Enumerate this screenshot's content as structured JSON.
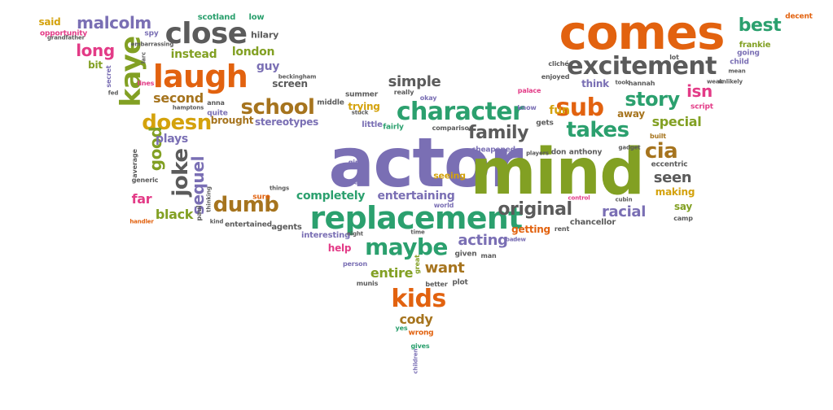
{
  "colors": {
    "orange": "#e2620f",
    "green": "#2ba06e",
    "purple": "#7a6fb4",
    "olive": "#82a023",
    "gray": "#5b5b5b",
    "gold": "#d4a20c",
    "brown": "#a6741e",
    "magenta": "#e33b87"
  },
  "words": [
    {
      "text": "actor",
      "color": "purple"
    },
    {
      "text": "mind",
      "color": "olive"
    },
    {
      "text": "comes",
      "color": "orange"
    },
    {
      "text": "replacement",
      "color": "green"
    },
    {
      "text": "excitement",
      "color": "gray"
    },
    {
      "text": "close",
      "color": "gray"
    },
    {
      "text": "laugh",
      "color": "orange"
    },
    {
      "text": "character",
      "color": "green"
    },
    {
      "text": "school",
      "color": "brown"
    },
    {
      "text": "doesn",
      "color": "gold"
    },
    {
      "text": "maybe",
      "color": "green"
    },
    {
      "text": "kids",
      "color": "orange"
    },
    {
      "text": "sub",
      "color": "orange"
    },
    {
      "text": "story",
      "color": "green"
    },
    {
      "text": "takes",
      "color": "green"
    },
    {
      "text": "dumb",
      "color": "brown"
    },
    {
      "text": "family",
      "color": "gray"
    },
    {
      "text": "original",
      "color": "gray"
    },
    {
      "text": "cia",
      "color": "brown"
    },
    {
      "text": "kaye",
      "color": "olive"
    },
    {
      "text": "joke",
      "color": "gray"
    },
    {
      "text": "malcolm",
      "color": "purple"
    },
    {
      "text": "acting",
      "color": "purple"
    },
    {
      "text": "racial",
      "color": "purple"
    },
    {
      "text": "want",
      "color": "brown"
    },
    {
      "text": "entire",
      "color": "olive"
    },
    {
      "text": "cody",
      "color": "brown"
    },
    {
      "text": "simple",
      "color": "gray"
    },
    {
      "text": "best",
      "color": "green"
    },
    {
      "text": "second",
      "color": "brown"
    },
    {
      "text": "long",
      "color": "magenta"
    },
    {
      "text": "isn",
      "color": "magenta"
    },
    {
      "text": "sequel",
      "color": "purple"
    },
    {
      "text": "black",
      "color": "olive"
    },
    {
      "text": "special",
      "color": "olive"
    },
    {
      "text": "seen",
      "color": "gray"
    },
    {
      "text": "making",
      "color": "gold"
    },
    {
      "text": "entertaining",
      "color": "purple"
    },
    {
      "text": "completely",
      "color": "green"
    },
    {
      "text": "good",
      "color": "olive"
    },
    {
      "text": "instead",
      "color": "olive"
    },
    {
      "text": "london",
      "color": "olive"
    },
    {
      "text": "brought",
      "color": "brown"
    },
    {
      "text": "stereotypes",
      "color": "purple"
    },
    {
      "text": "far",
      "color": "magenta"
    },
    {
      "text": "plays",
      "color": "purple"
    },
    {
      "text": "getting",
      "color": "orange"
    },
    {
      "text": "away",
      "color": "brown"
    },
    {
      "text": "fun",
      "color": "gold"
    },
    {
      "text": "think",
      "color": "purple"
    },
    {
      "text": "guy",
      "color": "purple"
    },
    {
      "text": "hilary",
      "color": "gray"
    },
    {
      "text": "said",
      "color": "gold"
    },
    {
      "text": "bit",
      "color": "olive"
    },
    {
      "text": "say",
      "color": "olive"
    },
    {
      "text": "trying",
      "color": "gold"
    },
    {
      "text": "seeing",
      "color": "gold"
    },
    {
      "text": "help",
      "color": "magenta"
    },
    {
      "text": "chancellor",
      "color": "gray"
    },
    {
      "text": "screen",
      "color": "gray"
    },
    {
      "text": "scotland",
      "color": "green"
    },
    {
      "text": "low",
      "color": "green"
    },
    {
      "text": "frankie",
      "color": "olive"
    },
    {
      "text": "decent",
      "color": "orange"
    },
    {
      "text": "opportunity",
      "color": "magenta"
    },
    {
      "text": "spy",
      "color": "purple"
    },
    {
      "text": "little",
      "color": "purple"
    },
    {
      "text": "tell",
      "color": "purple"
    },
    {
      "text": "interesting",
      "color": "purple"
    },
    {
      "text": "agents",
      "color": "gray"
    },
    {
      "text": "entertained",
      "color": "gray"
    },
    {
      "text": "sure",
      "color": "orange"
    },
    {
      "text": "gets",
      "color": "gray"
    },
    {
      "text": "don",
      "color": "gray"
    },
    {
      "text": "anthony",
      "color": "gray"
    },
    {
      "text": "eccentric",
      "color": "gray"
    },
    {
      "text": "cheapened",
      "color": "purple"
    },
    {
      "text": "plot",
      "color": "gray"
    },
    {
      "text": "given",
      "color": "gray"
    },
    {
      "text": "man",
      "color": "gray"
    },
    {
      "text": "wrong",
      "color": "orange"
    },
    {
      "text": "gives",
      "color": "green"
    },
    {
      "text": "camp",
      "color": "gray"
    },
    {
      "text": "rent",
      "color": "gray"
    },
    {
      "text": "summer",
      "color": "gray"
    },
    {
      "text": "enjoyed",
      "color": "gray"
    },
    {
      "text": "palace",
      "color": "magenta"
    },
    {
      "text": "hannah",
      "color": "gray"
    },
    {
      "text": "lot",
      "color": "gray"
    },
    {
      "text": "child",
      "color": "purple"
    },
    {
      "text": "going",
      "color": "purple"
    },
    {
      "text": "built",
      "color": "brown"
    },
    {
      "text": "script",
      "color": "magenta"
    },
    {
      "text": "okay",
      "color": "purple"
    },
    {
      "text": "really",
      "color": "gray"
    },
    {
      "text": "know",
      "color": "purple"
    },
    {
      "text": "quite",
      "color": "purple"
    },
    {
      "text": "anna",
      "color": "gray"
    },
    {
      "text": "fairly",
      "color": "green"
    },
    {
      "text": "middle",
      "color": "gray"
    },
    {
      "text": "generic",
      "color": "gray"
    },
    {
      "text": "average",
      "color": "gray"
    },
    {
      "text": "secret",
      "color": "purple"
    },
    {
      "text": "lines",
      "color": "magenta"
    },
    {
      "text": "girl",
      "color": "purple"
    },
    {
      "text": "world",
      "color": "purple"
    },
    {
      "text": "person",
      "color": "purple"
    },
    {
      "text": "munis",
      "color": "gray"
    },
    {
      "text": "yes",
      "color": "green"
    },
    {
      "text": "better",
      "color": "gray"
    },
    {
      "text": "comparison",
      "color": "gray"
    },
    {
      "text": "cliché",
      "color": "gray"
    },
    {
      "text": "things",
      "color": "gray"
    },
    {
      "text": "great",
      "color": "olive"
    },
    {
      "text": "grandfather",
      "color": "gray"
    },
    {
      "text": "beckingham",
      "color": "gray"
    },
    {
      "text": "handler",
      "color": "orange"
    },
    {
      "text": "control",
      "color": "magenta"
    },
    {
      "text": "bad",
      "color": "purple"
    },
    {
      "text": "new",
      "color": "purple"
    },
    {
      "text": "night",
      "color": "gray"
    },
    {
      "text": "stuck",
      "color": "gray"
    },
    {
      "text": "players",
      "color": "gray"
    },
    {
      "text": "children",
      "color": "purple"
    },
    {
      "text": "paul",
      "color": "gray"
    },
    {
      "text": "thinking",
      "color": "gray"
    },
    {
      "text": "kind",
      "color": "gray"
    },
    {
      "text": "weak",
      "color": "gray"
    },
    {
      "text": "fed",
      "color": "gray"
    },
    {
      "text": "took",
      "color": "gray"
    },
    {
      "text": "time",
      "color": "gray"
    },
    {
      "text": "cubin",
      "color": "gray"
    },
    {
      "text": "larc",
      "color": "gray"
    },
    {
      "text": "gadget",
      "color": "gray"
    },
    {
      "text": "mean",
      "color": "gray"
    },
    {
      "text": "hamptons",
      "color": "gray"
    },
    {
      "text": "embarrassing",
      "color": "gray"
    },
    {
      "text": "unlikely",
      "color": "gray"
    },
    {
      "text": "wits",
      "color": "gray"
    }
  ]
}
